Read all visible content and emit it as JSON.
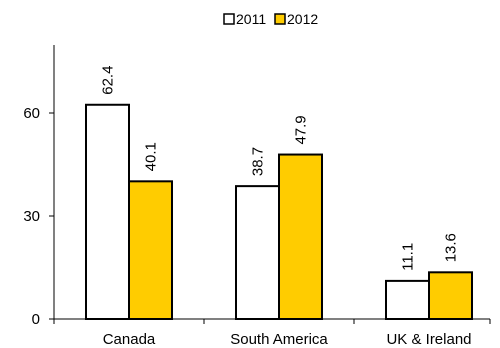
{
  "chart_data": {
    "type": "bar",
    "title": "",
    "xlabel": "",
    "ylabel": "",
    "categories": [
      "Canada",
      "South America",
      "UK & Ireland"
    ],
    "series": [
      {
        "name": "2011",
        "values": [
          62.4,
          38.7,
          11.1
        ],
        "color": "#ffffff"
      },
      {
        "name": "2012",
        "values": [
          40.1,
          47.9,
          13.6
        ],
        "color": "#ffcc00"
      }
    ],
    "data_labels": [
      [
        "62.4",
        "38.7",
        "11.1"
      ],
      [
        "40.1",
        "47.9",
        "13.6"
      ]
    ],
    "y_ticks": [
      "0",
      "30",
      "60"
    ],
    "ylim": [
      0,
      75
    ],
    "grid": false,
    "legend_position": "top-center",
    "data_label_orientation": "vertical"
  }
}
